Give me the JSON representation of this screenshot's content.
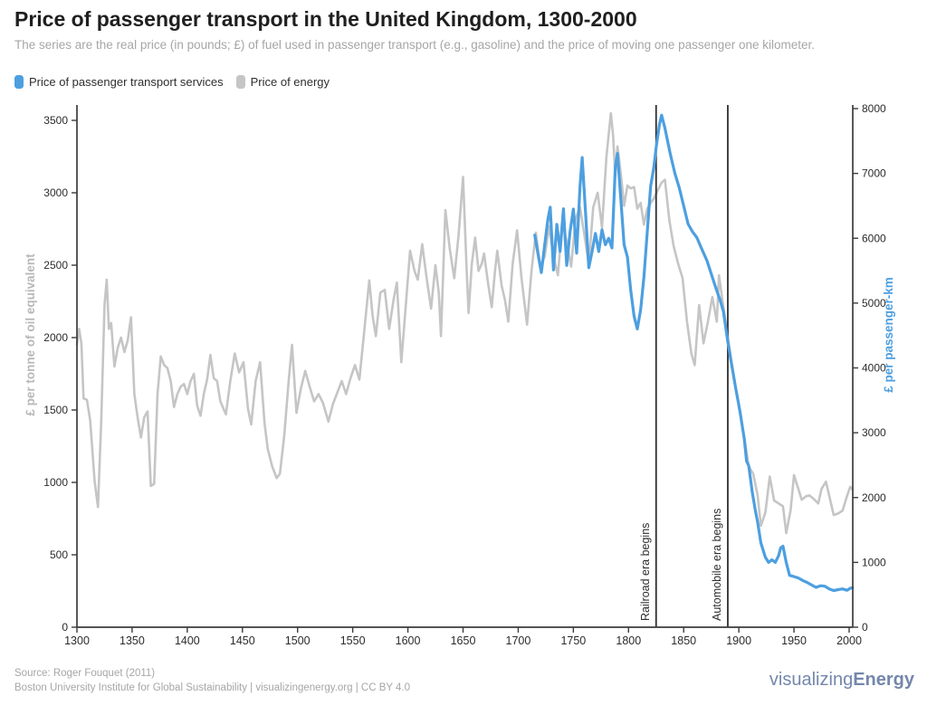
{
  "header": {
    "title": "Price of passenger transport in the United Kingdom, 1300-2000",
    "subtitle": "The series are the real price (in pounds; £) of fuel used in passenger transport (e.g., gasoline) and the price of moving one passenger one kilometer."
  },
  "legend": [
    {
      "label": "Price of passenger transport services",
      "color": "#4d9fe0"
    },
    {
      "label": "Price of energy",
      "color": "#c5c5c5"
    }
  ],
  "footer": {
    "source_line1": "Source: Roger Fouquet (2011)",
    "source_line2": "Boston University Institute for Global Sustainability | visualizingenergy.org | CC BY 4.0",
    "logo_regular": "visualizing",
    "logo_bold": "Energy"
  },
  "chart_data": {
    "type": "line",
    "title": "Price of passenger transport in the United Kingdom, 1300-2000",
    "x_axis": {
      "label": "",
      "range": [
        1300,
        2003
      ],
      "ticks": [
        1300,
        1350,
        1400,
        1450,
        1500,
        1550,
        1600,
        1650,
        1700,
        1750,
        1800,
        1850,
        1900,
        1950,
        2000
      ]
    },
    "left_axis": {
      "label": "£ per tonne of oil equivalent",
      "range": [
        0,
        3600
      ],
      "ticks": [
        0,
        500,
        1000,
        1500,
        2000,
        2500,
        3000,
        3500
      ],
      "color": "#b8b8b8"
    },
    "right_axis": {
      "label": "£ per passenger-km",
      "range": [
        0,
        8050
      ],
      "ticks": [
        0,
        1000,
        2000,
        3000,
        4000,
        5000,
        6000,
        7000,
        8000
      ],
      "color": "#4d9fe0"
    },
    "grid": false,
    "legend_position": "top-left",
    "annotations": [
      {
        "year": 1825,
        "label": "Railroad era begins"
      },
      {
        "year": 1890,
        "label": "Automobile era begins"
      }
    ],
    "series": [
      {
        "name": "Price of energy",
        "axis": "left",
        "color": "#c5c5c5",
        "width": 2.6,
        "points": [
          [
            1300,
            1950
          ],
          [
            1302,
            2060
          ],
          [
            1304,
            1960
          ],
          [
            1306,
            1580
          ],
          [
            1309,
            1570
          ],
          [
            1312,
            1430
          ],
          [
            1316,
            1010
          ],
          [
            1319,
            830
          ],
          [
            1322,
            1420
          ],
          [
            1325,
            2230
          ],
          [
            1327,
            2400
          ],
          [
            1329,
            2060
          ],
          [
            1331,
            2100
          ],
          [
            1334,
            1800
          ],
          [
            1337,
            1930
          ],
          [
            1340,
            2000
          ],
          [
            1343,
            1900
          ],
          [
            1346,
            1980
          ],
          [
            1349,
            2140
          ],
          [
            1352,
            1610
          ],
          [
            1355,
            1450
          ],
          [
            1358,
            1310
          ],
          [
            1361,
            1450
          ],
          [
            1364,
            1490
          ],
          [
            1367,
            975
          ],
          [
            1370,
            990
          ],
          [
            1373,
            1610
          ],
          [
            1376,
            1870
          ],
          [
            1379,
            1810
          ],
          [
            1382,
            1790
          ],
          [
            1385,
            1700
          ],
          [
            1388,
            1520
          ],
          [
            1391,
            1610
          ],
          [
            1394,
            1660
          ],
          [
            1397,
            1680
          ],
          [
            1400,
            1610
          ],
          [
            1403,
            1700
          ],
          [
            1406,
            1750
          ],
          [
            1409,
            1530
          ],
          [
            1412,
            1460
          ],
          [
            1415,
            1610
          ],
          [
            1418,
            1710
          ],
          [
            1421,
            1880
          ],
          [
            1424,
            1720
          ],
          [
            1427,
            1700
          ],
          [
            1430,
            1560
          ],
          [
            1435,
            1470
          ],
          [
            1439,
            1700
          ],
          [
            1443,
            1890
          ],
          [
            1447,
            1760
          ],
          [
            1451,
            1830
          ],
          [
            1455,
            1510
          ],
          [
            1458,
            1400
          ],
          [
            1462,
            1700
          ],
          [
            1466,
            1830
          ],
          [
            1470,
            1410
          ],
          [
            1473,
            1230
          ],
          [
            1477,
            1110
          ],
          [
            1481,
            1030
          ],
          [
            1484,
            1060
          ],
          [
            1488,
            1330
          ],
          [
            1492,
            1710
          ],
          [
            1495,
            1950
          ],
          [
            1499,
            1480
          ],
          [
            1503,
            1650
          ],
          [
            1507,
            1770
          ],
          [
            1511,
            1660
          ],
          [
            1515,
            1560
          ],
          [
            1519,
            1610
          ],
          [
            1523,
            1550
          ],
          [
            1528,
            1420
          ],
          [
            1532,
            1540
          ],
          [
            1536,
            1620
          ],
          [
            1540,
            1700
          ],
          [
            1544,
            1610
          ],
          [
            1548,
            1720
          ],
          [
            1552,
            1810
          ],
          [
            1556,
            1710
          ],
          [
            1560,
            2010
          ],
          [
            1565,
            2395
          ],
          [
            1568,
            2150
          ],
          [
            1571,
            2010
          ],
          [
            1575,
            2310
          ],
          [
            1579,
            2330
          ],
          [
            1583,
            2060
          ],
          [
            1587,
            2260
          ],
          [
            1590,
            2380
          ],
          [
            1594,
            1830
          ],
          [
            1598,
            2210
          ],
          [
            1602,
            2600
          ],
          [
            1606,
            2460
          ],
          [
            1609,
            2400
          ],
          [
            1613,
            2645
          ],
          [
            1617,
            2410
          ],
          [
            1621,
            2200
          ],
          [
            1625,
            2500
          ],
          [
            1628,
            2310
          ],
          [
            1630,
            2010
          ],
          [
            1634,
            2880
          ],
          [
            1638,
            2610
          ],
          [
            1642,
            2410
          ],
          [
            1646,
            2710
          ],
          [
            1650,
            3110
          ],
          [
            1653,
            2510
          ],
          [
            1655,
            2170
          ],
          [
            1658,
            2510
          ],
          [
            1661,
            2690
          ],
          [
            1664,
            2460
          ],
          [
            1667,
            2510
          ],
          [
            1669,
            2580
          ],
          [
            1673,
            2360
          ],
          [
            1676,
            2210
          ],
          [
            1679,
            2460
          ],
          [
            1681,
            2600
          ],
          [
            1685,
            2360
          ],
          [
            1688,
            2260
          ],
          [
            1691,
            2110
          ],
          [
            1695,
            2510
          ],
          [
            1699,
            2740
          ],
          [
            1703,
            2410
          ],
          [
            1708,
            2090
          ],
          [
            1712,
            2460
          ],
          [
            1716,
            2725
          ],
          [
            1720,
            2490
          ],
          [
            1724,
            2560
          ],
          [
            1728,
            2770
          ],
          [
            1732,
            2560
          ],
          [
            1736,
            2430
          ],
          [
            1740,
            2800
          ],
          [
            1744,
            2660
          ],
          [
            1748,
            2490
          ],
          [
            1752,
            2820
          ],
          [
            1756,
            2900
          ],
          [
            1760,
            2710
          ],
          [
            1764,
            2510
          ],
          [
            1768,
            2900
          ],
          [
            1772,
            3000
          ],
          [
            1776,
            2760
          ],
          [
            1780,
            3250
          ],
          [
            1784,
            3550
          ],
          [
            1786,
            3400
          ],
          [
            1788,
            3110
          ],
          [
            1790,
            3320
          ],
          [
            1793,
            3130
          ],
          [
            1796,
            2910
          ],
          [
            1799,
            3050
          ],
          [
            1802,
            3030
          ],
          [
            1805,
            3040
          ],
          [
            1808,
            2890
          ],
          [
            1811,
            2930
          ],
          [
            1814,
            2780
          ],
          [
            1817,
            2890
          ],
          [
            1820,
            2930
          ],
          [
            1823,
            2960
          ],
          [
            1826,
            3010
          ],
          [
            1830,
            3070
          ],
          [
            1833,
            3090
          ],
          [
            1837,
            2810
          ],
          [
            1841,
            2630
          ],
          [
            1845,
            2510
          ],
          [
            1849,
            2410
          ],
          [
            1853,
            2110
          ],
          [
            1857,
            1890
          ],
          [
            1860,
            1810
          ],
          [
            1864,
            2225
          ],
          [
            1868,
            1960
          ],
          [
            1872,
            2110
          ],
          [
            1876,
            2280
          ],
          [
            1880,
            2110
          ],
          [
            1882,
            2430
          ],
          [
            1886,
            2210
          ],
          [
            1890,
            2010
          ],
          [
            1893,
            1850
          ],
          [
            1897,
            1660
          ],
          [
            1901,
            1480
          ],
          [
            1905,
            1310
          ],
          [
            1909,
            1110
          ],
          [
            1913,
            1060
          ],
          [
            1917,
            910
          ],
          [
            1920,
            700
          ],
          [
            1924,
            790
          ],
          [
            1928,
            1040
          ],
          [
            1932,
            875
          ],
          [
            1936,
            855
          ],
          [
            1940,
            835
          ],
          [
            1943,
            650
          ],
          [
            1947,
            810
          ],
          [
            1950,
            1050
          ],
          [
            1954,
            955
          ],
          [
            1957,
            880
          ],
          [
            1961,
            905
          ],
          [
            1964,
            910
          ],
          [
            1968,
            885
          ],
          [
            1972,
            855
          ],
          [
            1975,
            955
          ],
          [
            1979,
            1005
          ],
          [
            1982,
            905
          ],
          [
            1986,
            775
          ],
          [
            1990,
            785
          ],
          [
            1994,
            805
          ],
          [
            1998,
            905
          ],
          [
            2001,
            970
          ],
          [
            2003,
            950
          ]
        ]
      },
      {
        "name": "Price of passenger transport services",
        "axis": "right",
        "color": "#4d9fe0",
        "width": 3.2,
        "points": [
          [
            1715,
            6050
          ],
          [
            1718,
            5750
          ],
          [
            1721,
            5470
          ],
          [
            1724,
            5900
          ],
          [
            1727,
            6300
          ],
          [
            1729,
            6480
          ],
          [
            1732,
            5510
          ],
          [
            1735,
            6215
          ],
          [
            1738,
            5800
          ],
          [
            1741,
            6455
          ],
          [
            1744,
            5580
          ],
          [
            1747,
            6100
          ],
          [
            1750,
            6450
          ],
          [
            1753,
            5770
          ],
          [
            1756,
            6800
          ],
          [
            1758,
            7245
          ],
          [
            1761,
            6400
          ],
          [
            1764,
            5545
          ],
          [
            1767,
            5800
          ],
          [
            1770,
            6075
          ],
          [
            1773,
            5795
          ],
          [
            1776,
            6130
          ],
          [
            1779,
            5900
          ],
          [
            1782,
            6000
          ],
          [
            1785,
            5850
          ],
          [
            1788,
            7100
          ],
          [
            1790,
            7310
          ],
          [
            1793,
            6600
          ],
          [
            1796,
            5900
          ],
          [
            1799,
            5710
          ],
          [
            1802,
            5200
          ],
          [
            1805,
            4800
          ],
          [
            1808,
            4600
          ],
          [
            1811,
            4900
          ],
          [
            1814,
            5400
          ],
          [
            1817,
            6100
          ],
          [
            1820,
            6800
          ],
          [
            1823,
            7100
          ],
          [
            1825,
            7400
          ],
          [
            1828,
            7750
          ],
          [
            1830,
            7900
          ],
          [
            1833,
            7700
          ],
          [
            1836,
            7450
          ],
          [
            1838,
            7290
          ],
          [
            1842,
            7000
          ],
          [
            1846,
            6780
          ],
          [
            1850,
            6500
          ],
          [
            1854,
            6220
          ],
          [
            1858,
            6100
          ],
          [
            1862,
            6010
          ],
          [
            1866,
            5850
          ],
          [
            1871,
            5660
          ],
          [
            1875,
            5450
          ],
          [
            1879,
            5240
          ],
          [
            1883,
            5050
          ],
          [
            1886,
            4870
          ],
          [
            1890,
            4400
          ],
          [
            1893,
            4100
          ],
          [
            1897,
            3700
          ],
          [
            1901,
            3330
          ],
          [
            1905,
            2900
          ],
          [
            1907,
            2560
          ],
          [
            1909,
            2490
          ],
          [
            1912,
            2100
          ],
          [
            1915,
            1800
          ],
          [
            1917,
            1620
          ],
          [
            1920,
            1300
          ],
          [
            1924,
            1080
          ],
          [
            1927,
            1000
          ],
          [
            1930,
            1040
          ],
          [
            1933,
            1000
          ],
          [
            1936,
            1100
          ],
          [
            1938,
            1225
          ],
          [
            1940,
            1250
          ],
          [
            1943,
            1000
          ],
          [
            1946,
            800
          ],
          [
            1950,
            780
          ],
          [
            1954,
            760
          ],
          [
            1958,
            720
          ],
          [
            1962,
            690
          ],
          [
            1966,
            650
          ],
          [
            1970,
            615
          ],
          [
            1974,
            640
          ],
          [
            1978,
            633
          ],
          [
            1982,
            590
          ],
          [
            1986,
            565
          ],
          [
            1990,
            580
          ],
          [
            1994,
            590
          ],
          [
            1998,
            570
          ],
          [
            2001,
            600
          ],
          [
            2003,
            610
          ]
        ]
      }
    ]
  }
}
